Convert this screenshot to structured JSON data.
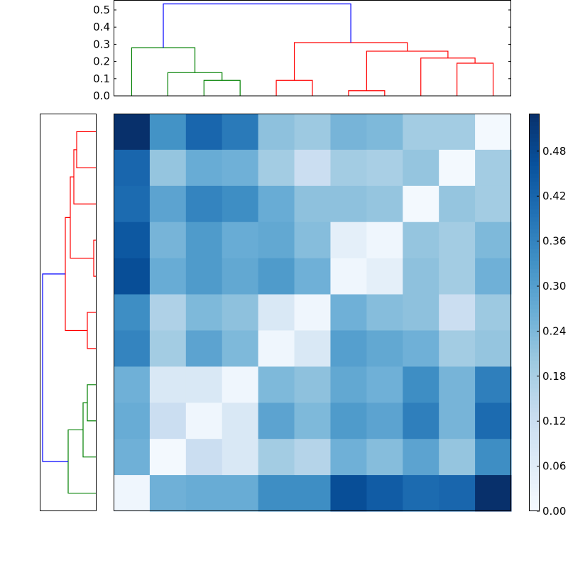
{
  "chart_data": {
    "type": "heatmap",
    "title": "",
    "colormap": "Blues",
    "vmin": 0.0,
    "vmax": 0.53,
    "matrix": [
      [
        0.53,
        0.33,
        0.42,
        0.38,
        0.22,
        0.2,
        0.25,
        0.24,
        0.19,
        0.19,
        0.01
      ],
      [
        0.42,
        0.21,
        0.27,
        0.26,
        0.19,
        0.12,
        0.19,
        0.18,
        0.21,
        0.01,
        0.19
      ],
      [
        0.41,
        0.29,
        0.36,
        0.34,
        0.27,
        0.22,
        0.22,
        0.21,
        0.01,
        0.21,
        0.19
      ],
      [
        0.45,
        0.25,
        0.31,
        0.27,
        0.28,
        0.23,
        0.05,
        0.02,
        0.21,
        0.19,
        0.24
      ],
      [
        0.47,
        0.27,
        0.31,
        0.28,
        0.31,
        0.26,
        0.02,
        0.05,
        0.22,
        0.19,
        0.26
      ],
      [
        0.34,
        0.17,
        0.24,
        0.22,
        0.08,
        0.02,
        0.26,
        0.23,
        0.22,
        0.12,
        0.2
      ],
      [
        0.36,
        0.19,
        0.29,
        0.24,
        0.02,
        0.08,
        0.3,
        0.28,
        0.26,
        0.19,
        0.21
      ],
      [
        0.26,
        0.08,
        0.08,
        0.02,
        0.24,
        0.22,
        0.28,
        0.26,
        0.34,
        0.25,
        0.37
      ],
      [
        0.27,
        0.12,
        0.02,
        0.08,
        0.29,
        0.24,
        0.31,
        0.29,
        0.37,
        0.25,
        0.41
      ],
      [
        0.26,
        0.01,
        0.12,
        0.08,
        0.19,
        0.16,
        0.26,
        0.23,
        0.29,
        0.21,
        0.34
      ],
      [
        0.02,
        0.26,
        0.27,
        0.27,
        0.34,
        0.34,
        0.47,
        0.44,
        0.41,
        0.42,
        0.53
      ]
    ],
    "colorbar": {
      "ticks": [
        0.0,
        0.06,
        0.12,
        0.18,
        0.24,
        0.3,
        0.36,
        0.42,
        0.48
      ],
      "tick_labels": [
        "0.00",
        "0.06",
        "0.12",
        "0.18",
        "0.24",
        "0.30",
        "0.36",
        "0.42",
        "0.48"
      ]
    },
    "top_dendrogram": {
      "ylim": [
        0,
        0.56
      ],
      "yticks": [
        0.0,
        0.1,
        0.2,
        0.3,
        0.4,
        0.5
      ],
      "ytick_labels": [
        "0.0",
        "0.1",
        "0.2",
        "0.3",
        "0.4",
        "0.5"
      ],
      "links": [
        {
          "x": [
            2,
            3
          ],
          "h": [
            0,
            0.09,
            0.09,
            0
          ],
          "color": "#008000"
        },
        {
          "x": [
            1,
            2.5
          ],
          "h": [
            0,
            0.135,
            0.135,
            0.09
          ],
          "color": "#008000"
        },
        {
          "x": [
            0,
            1.75
          ],
          "h": [
            0,
            0.28,
            0.28,
            0.135
          ],
          "color": "#008000"
        },
        {
          "x": [
            4,
            5
          ],
          "h": [
            0,
            0.09,
            0.09,
            0
          ],
          "color": "#ff0000"
        },
        {
          "x": [
            6,
            7
          ],
          "h": [
            0,
            0.03,
            0.03,
            0
          ],
          "color": "#ff0000"
        },
        {
          "x": [
            9,
            10
          ],
          "h": [
            0,
            0.19,
            0.19,
            0
          ],
          "color": "#ff0000"
        },
        {
          "x": [
            8,
            9.5
          ],
          "h": [
            0,
            0.22,
            0.22,
            0.19
          ],
          "color": "#ff0000"
        },
        {
          "x": [
            6.5,
            8.75
          ],
          "h": [
            0.03,
            0.26,
            0.26,
            0.22
          ],
          "color": "#ff0000"
        },
        {
          "x": [
            4.5,
            7.625
          ],
          "h": [
            0.09,
            0.31,
            0.31,
            0.26
          ],
          "color": "#ff0000"
        },
        {
          "x": [
            0.875,
            6.0625
          ],
          "h": [
            0.28,
            0.535,
            0.535,
            0.31
          ],
          "color": "#0000ff"
        }
      ]
    },
    "left_dendrogram": {
      "xlim": [
        0,
        0.56
      ],
      "links": [
        {
          "x": [
            0,
            1
          ],
          "h": [
            0,
            0.196,
            0.196,
            0
          ],
          "color": "#ff0000"
        },
        {
          "x": [
            0.5,
            2
          ],
          "h": [
            0.196,
            0.224,
            0.224,
            0
          ],
          "color": "#ff0000"
        },
        {
          "x": [
            3,
            4
          ],
          "h": [
            0,
            0.028,
            0.028,
            0
          ],
          "color": "#ff0000"
        },
        {
          "x": [
            1.25,
            3.5
          ],
          "h": [
            0.224,
            0.259,
            0.259,
            0.028
          ],
          "color": "#ff0000"
        },
        {
          "x": [
            5,
            6
          ],
          "h": [
            0,
            0.091,
            0.091,
            0
          ],
          "color": "#ff0000"
        },
        {
          "x": [
            2.375,
            5.5
          ],
          "h": [
            0.259,
            0.308,
            0.308,
            0.091
          ],
          "color": "#ff0000"
        },
        {
          "x": [
            7,
            8
          ],
          "h": [
            0,
            0.091,
            0.091,
            0
          ],
          "color": "#008000"
        },
        {
          "x": [
            7.5,
            9
          ],
          "h": [
            0.091,
            0.133,
            0.133,
            0
          ],
          "color": "#008000"
        },
        {
          "x": [
            8.25,
            10
          ],
          "h": [
            0.133,
            0.28,
            0.28,
            0
          ],
          "color": "#008000"
        },
        {
          "x": [
            3.9375,
            9.125
          ],
          "h": [
            0.308,
            0.532,
            0.532,
            0.28
          ],
          "color": "#0000ff"
        }
      ]
    }
  }
}
